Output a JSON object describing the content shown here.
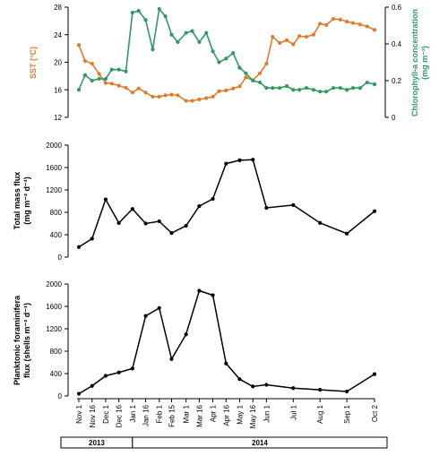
{
  "chart_data": [
    {
      "type": "line",
      "x": [
        "Nov 1",
        "Nov 8",
        "Nov 16",
        "Nov 24",
        "Dec 1",
        "Dec 8",
        "Dec 16",
        "Dec 24",
        "Jan 1",
        "Jan 8",
        "Jan 16",
        "Jan 24",
        "Feb 1",
        "Feb 8",
        "Feb 15",
        "Feb 22",
        "Mar 1",
        "Mar 8",
        "Mar 16",
        "Mar 24",
        "Apr 1",
        "Apr 8",
        "Apr 16",
        "Apr 24",
        "May 1",
        "May 8",
        "May 16",
        "May 24",
        "Jun 1",
        "Jun 8",
        "Jun 16",
        "Jun 24",
        "Jul 1",
        "Jul 8",
        "Jul 16",
        "Jul 24",
        "Aug 1",
        "Aug 8",
        "Aug 16",
        "Aug 24",
        "Sep 1",
        "Sep 8",
        "Sep 16",
        "Sep 24",
        "Oct 2"
      ],
      "series": [
        {
          "name": "SST",
          "axis": "left",
          "color": "#e07b2e",
          "values": [
            22.5,
            20.2,
            19.8,
            18.3,
            17.0,
            16.9,
            16.6,
            16.3,
            15.6,
            16.2,
            15.6,
            15.0,
            15.0,
            15.2,
            15.3,
            15.2,
            14.4,
            14.4,
            14.6,
            14.8,
            15.0,
            15.8,
            15.9,
            16.2,
            16.5,
            17.8,
            17.4,
            18.4,
            19.8,
            23.7,
            22.8,
            23.2,
            22.6,
            23.8,
            23.7,
            24.0,
            25.6,
            25.4,
            26.3,
            26.2,
            25.9,
            25.7,
            25.5,
            25.2,
            24.7
          ]
        },
        {
          "name": "Chlorophyll-a",
          "axis": "right",
          "color": "#2e9a62",
          "values": [
            0.15,
            0.23,
            0.2,
            0.21,
            0.21,
            0.26,
            0.26,
            0.25,
            0.57,
            0.58,
            0.53,
            0.37,
            0.59,
            0.55,
            0.45,
            0.41,
            0.46,
            0.47,
            0.41,
            0.46,
            0.36,
            0.3,
            0.32,
            0.35,
            0.27,
            0.24,
            0.2,
            0.19,
            0.16,
            0.16,
            0.16,
            0.17,
            0.15,
            0.15,
            0.16,
            0.15,
            0.14,
            0.14,
            0.16,
            0.16,
            0.15,
            0.16,
            0.16,
            0.19,
            0.18
          ]
        }
      ],
      "ylabel": "SST (°C)",
      "ylabel_right_line1": "Chlorophyll-a concentration",
      "ylabel_right_line2": "(mg  m⁻³)",
      "ylim": [
        12,
        28
      ],
      "ylim_right": [
        0,
        0.6
      ],
      "yticks": [
        "12",
        "16",
        "20",
        "24",
        "28"
      ],
      "yticks_right": [
        "0",
        "0.2",
        "0.4",
        "0.6"
      ]
    },
    {
      "type": "line",
      "x": [
        "Nov 1",
        "Nov 16",
        "Dec 1",
        "Dec 16",
        "Jan 1",
        "Jan 16",
        "Feb 1",
        "Feb 15",
        "Mar 1",
        "Mar 16",
        "Apr 1",
        "Apr 16",
        "May 1",
        "May 16",
        "Jun 1",
        "Jun 16",
        "Jul 1",
        "Aug 1",
        "Sep 1",
        "Oct 2"
      ],
      "series": [
        {
          "name": "Total mass flux",
          "color": "#000000",
          "points": [
            {
              "x": "Nov 1",
              "y": 180
            },
            {
              "x": "Nov 16",
              "y": 330
            },
            {
              "x": "Dec 1",
              "y": 1030
            },
            {
              "x": "Dec 16",
              "y": 610
            },
            {
              "x": "Jan 1",
              "y": 860
            },
            {
              "x": "Jan 16",
              "y": 600
            },
            {
              "x": "Feb 1",
              "y": 640
            },
            {
              "x": "Feb 15",
              "y": 430
            },
            {
              "x": "Mar 1",
              "y": 560
            },
            {
              "x": "Mar 16",
              "y": 910
            },
            {
              "x": "Apr 1",
              "y": 1040
            },
            {
              "x": "Apr 16",
              "y": 1670
            },
            {
              "x": "May 1",
              "y": 1730
            },
            {
              "x": "May 16",
              "y": 1740
            },
            {
              "x": "Jun 1",
              "y": 880
            },
            {
              "x": "Jul 1",
              "y": 930
            },
            {
              "x": "Aug 1",
              "y": 610
            },
            {
              "x": "Sep 1",
              "y": 420
            },
            {
              "x": "Oct 2",
              "y": 820
            }
          ]
        }
      ],
      "ylabel_line1": "Total mass flux",
      "ylabel_line2": "(mg  m⁻² d⁻¹)",
      "ylim": [
        0,
        2000
      ],
      "yticks": [
        "0",
        "400",
        "800",
        "1200",
        "1600",
        "2000"
      ]
    },
    {
      "type": "line",
      "x": [
        "Nov 1",
        "Nov 16",
        "Dec 1",
        "Dec 16",
        "Jan 1",
        "Jan 16",
        "Feb 1",
        "Feb 15",
        "Mar 1",
        "Mar 16",
        "Apr 1",
        "Apr 16",
        "May 1",
        "May 16",
        "Jun 1",
        "Jun 16",
        "Jul 1",
        "Aug 1",
        "Sep 1",
        "Oct 2"
      ],
      "series": [
        {
          "name": "Planktonic foraminifera flux",
          "color": "#000000",
          "points": [
            {
              "x": "Nov 1",
              "y": 40
            },
            {
              "x": "Nov 16",
              "y": 180
            },
            {
              "x": "Dec 1",
              "y": 360
            },
            {
              "x": "Dec 16",
              "y": 420
            },
            {
              "x": "Jan 1",
              "y": 490
            },
            {
              "x": "Jan 16",
              "y": 1430
            },
            {
              "x": "Feb 1",
              "y": 1570
            },
            {
              "x": "Feb 15",
              "y": 660
            },
            {
              "x": "Mar 1",
              "y": 1100
            },
            {
              "x": "Mar 16",
              "y": 1880
            },
            {
              "x": "Apr 1",
              "y": 1800
            },
            {
              "x": "Apr 16",
              "y": 580
            },
            {
              "x": "May 1",
              "y": 300
            },
            {
              "x": "May 16",
              "y": 170
            },
            {
              "x": "Jun 1",
              "y": 200
            },
            {
              "x": "Jul 1",
              "y": 140
            },
            {
              "x": "Aug 1",
              "y": 110
            },
            {
              "x": "Sep 1",
              "y": 80
            },
            {
              "x": "Oct 2",
              "y": 390
            }
          ]
        }
      ],
      "ylabel_line1": "Planktonic foraminifera",
      "ylabel_line2": "flux (shells  m⁻² d⁻¹)",
      "ylim": [
        0,
        2000
      ],
      "yticks": [
        "0",
        "400",
        "800",
        "1200",
        "1600",
        "2000"
      ]
    }
  ],
  "xaxis": {
    "ticks": [
      "Nov 1",
      "Nov 16",
      "Dec 1",
      "Dec 16",
      "Jan 1",
      "Jan 16",
      "Feb 1",
      "Feb 15",
      "Mar 1",
      "Mar 16",
      "Apr 1",
      "Apr 16",
      "May 1",
      "May 16",
      "Jun 1",
      "Jul 1",
      "Aug 1",
      "Sep 1",
      "Oct 2"
    ]
  },
  "years": [
    {
      "label": "2013",
      "from": "Nov 1",
      "to": "Jan 1"
    },
    {
      "label": "2014",
      "from": "Jan 1",
      "to": "Oct 2"
    }
  ]
}
